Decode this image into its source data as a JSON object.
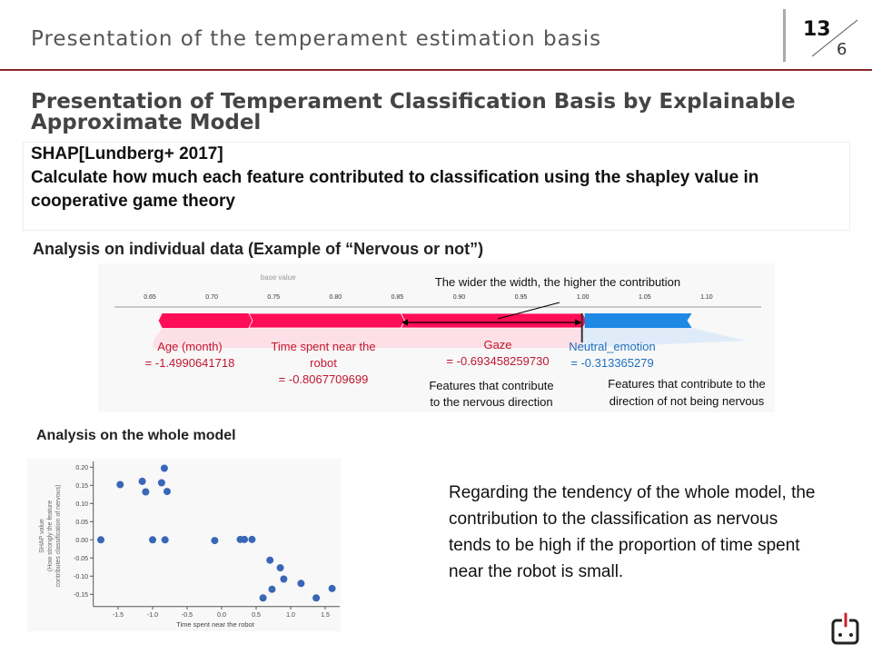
{
  "header": {
    "title": "Presentation of the temperament estimation basis",
    "page": "13",
    "total": "6"
  },
  "main_title": "Presentation of Temperament Classification Basis by Explainable Approximate Model",
  "shap_box": {
    "line1": "SHAP[Lundberg+ 2017]",
    "line2": "Calculate how much each feature contributed to classification using the shapley value in cooperative game theory"
  },
  "individual_label": "Analysis on individual data (Example of “Nervous or not”)",
  "force_plot": {
    "base_value_label": "base value",
    "ticks": [
      "0.65",
      "0.70",
      "0.75",
      "0.80",
      "0.85",
      "0.90",
      "0.95",
      "1.00",
      "1.05",
      "1.10"
    ],
    "tick_values": [
      0.65,
      0.7,
      0.75,
      0.8,
      0.85,
      0.9,
      0.95,
      1.0,
      1.05,
      1.1
    ],
    "base_value": 0.75,
    "positive_segments": [
      0.66,
      0.73,
      0.853,
      1.0
    ],
    "negative_segment": [
      1.0,
      1.088
    ],
    "annotation": "The wider the width, the higher the contribution",
    "features": [
      {
        "name": "Age (month)",
        "value": "= -1.4990641718"
      },
      {
        "name": "Time spent near the robot",
        "value": "= -0.8067709699"
      },
      {
        "name": "Gaze",
        "value": "= -0.693458259730"
      },
      {
        "name": "Neutral_emotion",
        "value": "= -0.313365279"
      }
    ],
    "nervous_caption": "Features that contribute to the nervous direction",
    "not_nervous_caption": "Features that contribute to the direction of not being nervous",
    "colors": {
      "positive": "#ff0d57",
      "negative": "#1e88e5",
      "pos_text": "#c0172e",
      "neg_text": "#1e6fc0"
    }
  },
  "whole_label": "Analysis on the whole model",
  "chart_data": {
    "type": "scatter",
    "xlabel": "Time spent near the robot",
    "ylabel": [
      "SHAP value",
      "(How strongly the feature",
      "contributes classification of nervous)"
    ],
    "xlim": [
      -1.85,
      1.75
    ],
    "ylim": [
      -0.17,
      0.21
    ],
    "xticks": [
      -1.5,
      -1.0,
      -0.5,
      0.0,
      0.5,
      1.0,
      1.5
    ],
    "xtick_labels": [
      "-1.5",
      "-1.0",
      "-0.5",
      "0.0",
      "0.5",
      "1.0",
      "1.5"
    ],
    "yticks": [
      0.2,
      0.15,
      0.1,
      0.05,
      0.0,
      -0.05,
      -0.1,
      -0.15
    ],
    "ytick_labels": [
      "0.20",
      "0.15",
      "0.10",
      "0.05",
      "0.00",
      "-0.05",
      "-0.10",
      "-0.15"
    ],
    "color": "#3a66b8",
    "points": [
      [
        -1.75,
        0.0
      ],
      [
        -1.47,
        0.152
      ],
      [
        -1.15,
        0.161
      ],
      [
        -1.1,
        0.132
      ],
      [
        -1.0,
        0.0
      ],
      [
        -0.87,
        0.157
      ],
      [
        -0.83,
        0.197
      ],
      [
        -0.82,
        0.0
      ],
      [
        -0.79,
        0.133
      ],
      [
        -0.1,
        -0.002
      ],
      [
        0.27,
        0.001
      ],
      [
        0.33,
        0.001
      ],
      [
        0.44,
        0.001
      ],
      [
        0.7,
        -0.056
      ],
      [
        0.85,
        -0.077
      ],
      [
        0.9,
        -0.108
      ],
      [
        0.6,
        -0.16
      ],
      [
        0.73,
        -0.136
      ],
      [
        1.15,
        -0.12
      ],
      [
        1.37,
        -0.16
      ],
      [
        1.6,
        -0.134
      ]
    ]
  },
  "description": "Regarding the tendency of the whole model, the contribution to the classification as nervous tends to be high if the proportion of time spent near the robot is small."
}
